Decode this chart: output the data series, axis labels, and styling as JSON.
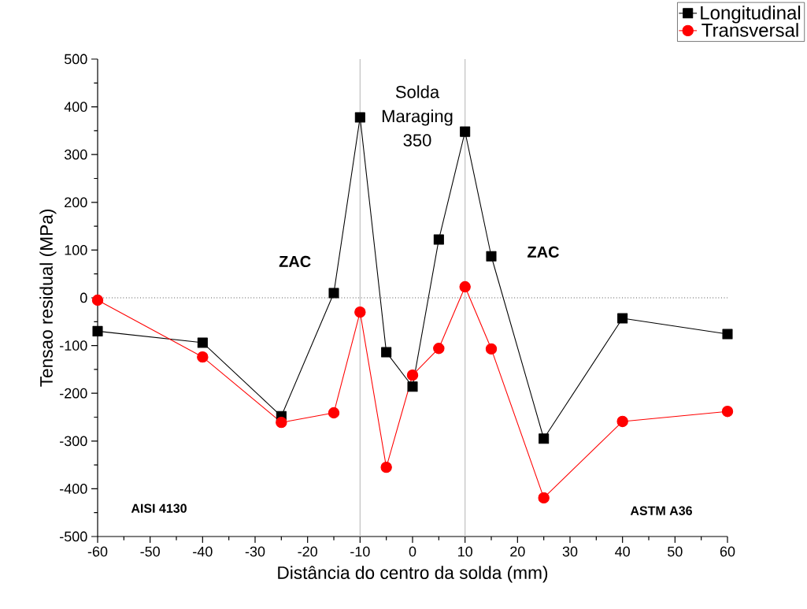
{
  "chart_data": {
    "type": "line",
    "xlabel": "Distância do centro da solda (mm)",
    "ylabel": "Tensao residual (MPa)",
    "x": [
      -60,
      -40,
      -25,
      -15,
      -10,
      -5,
      0,
      5,
      10,
      15,
      25,
      40,
      60
    ],
    "series": [
      {
        "name": "Longitudinal",
        "color": "#000000",
        "marker": "square",
        "values": [
          -70,
          -94,
          -248,
          10,
          378,
          -114,
          -186,
          122,
          348,
          87,
          -295,
          -43,
          -76
        ]
      },
      {
        "name": "Transversal",
        "color": "#ff0000",
        "marker": "circle",
        "values": [
          -5,
          -124,
          -261,
          -241,
          -30,
          -355,
          -162,
          -106,
          23,
          -107,
          -419,
          -259,
          -238
        ]
      }
    ],
    "xlim": [
      -60,
      60
    ],
    "xticks": [
      -60,
      -50,
      -40,
      -30,
      -20,
      -10,
      0,
      10,
      20,
      30,
      40,
      50,
      60
    ],
    "ylim": [
      -500,
      500
    ],
    "yticks": [
      -500,
      -400,
      -300,
      -200,
      -100,
      0,
      100,
      200,
      300,
      400,
      500
    ],
    "ref_lines": [
      {
        "axis": "y",
        "value": 0,
        "color": "#404040",
        "line_style": "dotted"
      },
      {
        "axis": "x",
        "value": -10,
        "color": "#c0c0c0",
        "line_style": "solid"
      },
      {
        "axis": "x",
        "value": 10,
        "color": "#c0c0c0",
        "line_style": "solid"
      }
    ],
    "annotations": [
      "Solda Maraging 350",
      "ZAC",
      "ZAC",
      "AISI 4130",
      "ASTM A36"
    ],
    "legend": "top right",
    "line_style": "solid",
    "grid": false
  }
}
